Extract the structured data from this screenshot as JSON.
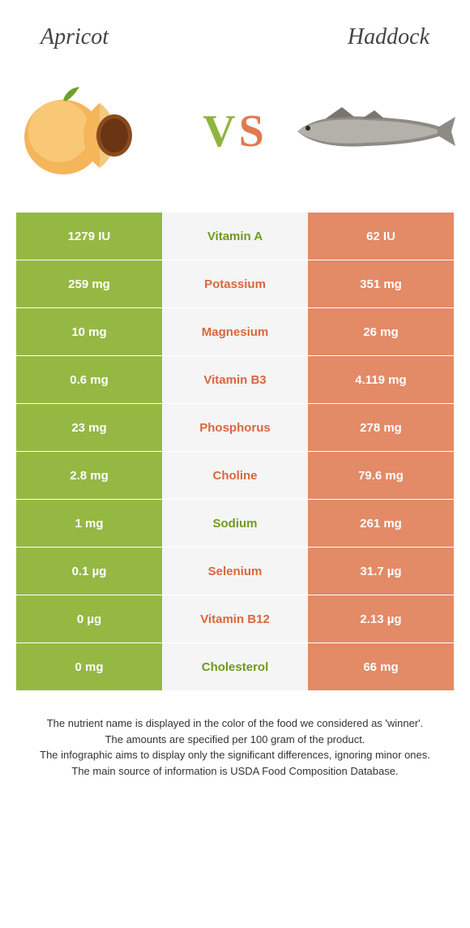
{
  "header": {
    "left": "Apricot",
    "right": "Haddock"
  },
  "vs": {
    "v": "V",
    "s": "S"
  },
  "colors": {
    "apricot": "#95b843",
    "haddock": "#e38a66",
    "mid_bg": "#f5f5f5",
    "mid_text_apricot": "#6f9a1f",
    "mid_text_haddock": "#d9663f"
  },
  "rows": [
    {
      "left": "1279 IU",
      "nutrient": "Vitamin A",
      "right": "62 IU",
      "winner": "apricot"
    },
    {
      "left": "259 mg",
      "nutrient": "Potassium",
      "right": "351 mg",
      "winner": "haddock"
    },
    {
      "left": "10 mg",
      "nutrient": "Magnesium",
      "right": "26 mg",
      "winner": "haddock"
    },
    {
      "left": "0.6 mg",
      "nutrient": "Vitamin B3",
      "right": "4.119 mg",
      "winner": "haddock"
    },
    {
      "left": "23 mg",
      "nutrient": "Phosphorus",
      "right": "278 mg",
      "winner": "haddock"
    },
    {
      "left": "2.8 mg",
      "nutrient": "Choline",
      "right": "79.6 mg",
      "winner": "haddock"
    },
    {
      "left": "1 mg",
      "nutrient": "Sodium",
      "right": "261 mg",
      "winner": "apricot"
    },
    {
      "left": "0.1 µg",
      "nutrient": "Selenium",
      "right": "31.7 µg",
      "winner": "haddock"
    },
    {
      "left": "0 µg",
      "nutrient": "Vitamin B12",
      "right": "2.13 µg",
      "winner": "haddock"
    },
    {
      "left": "0 mg",
      "nutrient": "Cholesterol",
      "right": "66 mg",
      "winner": "apricot"
    }
  ],
  "footnotes": [
    "The nutrient name is displayed in the color of the food we considered as 'winner'.",
    "The amounts are specified per 100 gram of the product.",
    "The infographic aims to display only the significant differences, ignoring minor ones.",
    "The main source of information is USDA Food Composition Database."
  ]
}
